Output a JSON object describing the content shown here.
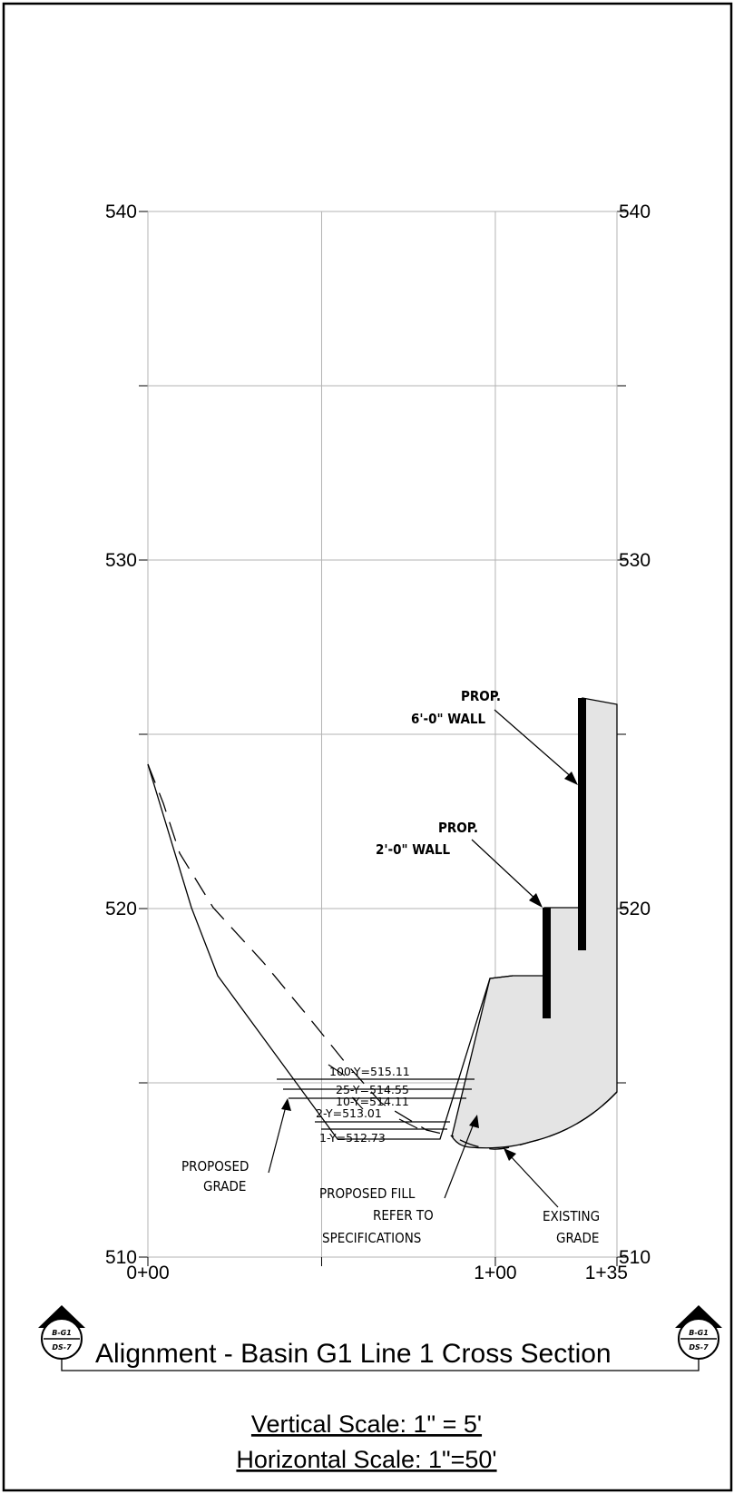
{
  "y_axis": {
    "labels": [
      "540",
      "530",
      "520",
      "510"
    ],
    "values": [
      540,
      530,
      520,
      510
    ],
    "minor_values": [
      535,
      525,
      515
    ]
  },
  "x_axis": {
    "labels": [
      "0+00",
      "1+00",
      "1+35"
    ],
    "values": [
      0,
      100,
      135
    ],
    "minor_values": [
      50
    ]
  },
  "water_levels": [
    {
      "label": "100-Y=515.11",
      "elevation": 515.11
    },
    {
      "label": "25-Y=514.55",
      "elevation": 514.55
    },
    {
      "label": "10-Y=514.11",
      "elevation": 514.11
    },
    {
      "label": "2-Y=513.01",
      "elevation": 513.01
    },
    {
      "label": "1-Y=512.73",
      "elevation": 512.73
    }
  ],
  "callouts": {
    "wall_6ft": {
      "line1": "PROP.",
      "line2": "6'-0\" WALL"
    },
    "wall_2ft": {
      "line1": "PROP.",
      "line2": "2'-0\" WALL"
    },
    "proposed_grade": {
      "line1": "PROPOSED",
      "line2": "GRADE"
    },
    "proposed_fill": {
      "line1": "PROPOSED FILL",
      "line2": "REFER TO",
      "line3": "SPECIFICATIONS"
    },
    "existing_grade": {
      "line1": "EXISTING",
      "line2": "GRADE"
    }
  },
  "section_marker": {
    "top": "B-G1",
    "bottom": "DS-7"
  },
  "title": "Alignment - Basin G1 Line 1 Cross Section",
  "scales": {
    "vertical": "Vertical Scale: 1\" = 5'",
    "horizontal": "Horizontal Scale: 1\"=50'"
  },
  "colors": {
    "fill_area": "#e4e4e4",
    "grid": "#b3b3b3",
    "ink": "#000000"
  }
}
